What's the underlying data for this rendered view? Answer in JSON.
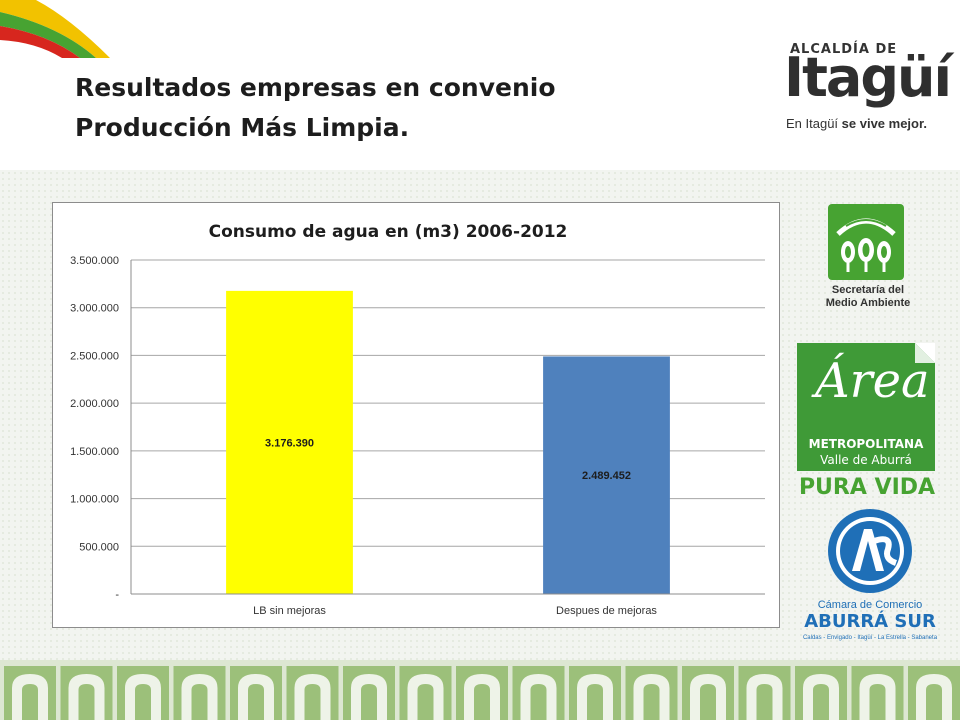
{
  "slide": {
    "title_line1": "Resultados empresas en convenio",
    "title_line2": "Producción Más Limpia."
  },
  "logos": {
    "itagui_top": "ALCALDÍA DE",
    "itagui_name": "Itagüí",
    "itagui_slogan_plain": "En Itagüí ",
    "itagui_slogan_bold": "se vive mejor.",
    "secretaria_line1": "Secretaría del",
    "secretaria_line2": "Medio Ambiente",
    "area_script": "Área",
    "area_line1": "METROPOLITANA",
    "area_line2": "Valle de Aburrá",
    "area_tag": "PURA VIDA",
    "camara_line1": "Cámara de Comercio",
    "camara_line2": "ABURRÁ SUR",
    "camara_line3": "Caldas - Envigado - Itagüí - La Estrella - Sabaneta"
  },
  "colors": {
    "bar_lb": "#ffff00",
    "bar_despues": "#4f81bd",
    "brand_green": "#47a332",
    "brand_blue": "#1f6fb7"
  },
  "chart_data": {
    "type": "bar",
    "title": "Consumo de agua en (m3) 2006-2012",
    "categories": [
      "LB sin mejoras",
      "Despues de mejoras"
    ],
    "values": [
      3176390,
      2489452
    ],
    "value_labels": [
      "3.176.390",
      "2.489.452"
    ],
    "ylim": [
      0,
      3500000
    ],
    "yticks": [
      0,
      500000,
      1000000,
      1500000,
      2000000,
      2500000,
      3000000,
      3500000
    ],
    "ytick_labels": [
      "-",
      "500.000",
      "1.000.000",
      "1.500.000",
      "2.000.000",
      "2.500.000",
      "3.000.000",
      "3.500.000"
    ],
    "grid": true,
    "legend": "none"
  }
}
